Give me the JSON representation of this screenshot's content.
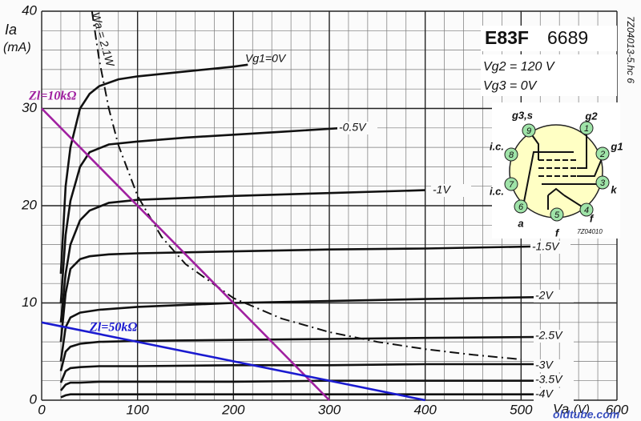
{
  "chart_data": {
    "type": "line",
    "title": "E83F",
    "subtitle": "6689",
    "conditions": [
      "Vg2 = 120 V",
      "Vg3 = 0V"
    ],
    "code": "7Z04013-5.hc 6",
    "watermark": "oldtube.com",
    "y_label": "Ia",
    "y_unit": "(mA)",
    "x_label": "Va",
    "x_unit": "(V)",
    "xlim": [
      0,
      600
    ],
    "ylim": [
      0,
      40
    ],
    "xticks": [
      0,
      100,
      200,
      300,
      400,
      500,
      600
    ],
    "yticks": [
      0,
      10,
      20,
      30,
      40
    ],
    "grid": true,
    "series": [
      {
        "name": "Vg1=0V",
        "color": "#111111",
        "x": [
          20,
          25,
          30,
          40,
          50,
          60,
          80,
          100,
          150,
          200,
          215
        ],
        "values": [
          13,
          22,
          26,
          30,
          31.5,
          32.3,
          33,
          33.3,
          33.8,
          34.3,
          34.5
        ]
      },
      {
        "name": "-0.5V",
        "color": "#111111",
        "x": [
          20,
          25,
          30,
          40,
          50,
          70,
          100,
          150,
          200,
          250,
          315
        ],
        "values": [
          10,
          17,
          20.5,
          24,
          25.5,
          26.3,
          26.6,
          27,
          27.3,
          27.6,
          28
        ]
      },
      {
        "name": "-1V",
        "color": "#111111",
        "x": [
          20,
          25,
          30,
          40,
          50,
          70,
          100,
          150,
          200,
          300,
          400
        ],
        "values": [
          8,
          13,
          16,
          18.5,
          19.5,
          20.3,
          20.6,
          20.8,
          21,
          21.3,
          21.6
        ]
      },
      {
        "name": "-1.5V",
        "color": "#111111",
        "x": [
          20,
          25,
          30,
          40,
          50,
          70,
          100,
          200,
          300,
          400,
          510
        ],
        "values": [
          6,
          11,
          13.5,
          14.5,
          14.8,
          15,
          15.1,
          15.3,
          15.5,
          15.6,
          15.8
        ]
      },
      {
        "name": "-2V",
        "color": "#111111",
        "x": [
          20,
          25,
          30,
          40,
          60,
          100,
          200,
          300,
          400,
          520
        ],
        "values": [
          4,
          7.5,
          8.5,
          9,
          9.3,
          9.6,
          10,
          10.2,
          10.4,
          10.6
        ]
      },
      {
        "name": "-2.5V",
        "color": "#111111",
        "x": [
          20,
          25,
          30,
          40,
          60,
          100,
          200,
          300,
          400,
          520
        ],
        "values": [
          3,
          5,
          5.5,
          5.8,
          6,
          6.1,
          6.2,
          6.3,
          6.4,
          6.5
        ]
      },
      {
        "name": "-3V",
        "color": "#111111",
        "x": [
          20,
          25,
          30,
          40,
          60,
          100,
          200,
          300,
          400,
          520
        ],
        "values": [
          1.8,
          3,
          3.3,
          3.4,
          3.5,
          3.5,
          3.6,
          3.6,
          3.7,
          3.7
        ]
      },
      {
        "name": "-3.5V",
        "color": "#111111",
        "x": [
          20,
          25,
          30,
          40,
          60,
          100,
          200,
          300,
          400,
          520
        ],
        "values": [
          1,
          1.6,
          1.8,
          1.8,
          1.9,
          1.9,
          1.9,
          2,
          2,
          2
        ]
      },
      {
        "name": "-4V",
        "color": "#111111",
        "x": [
          20,
          25,
          30,
          40,
          60,
          100,
          200,
          300,
          400,
          520
        ],
        "values": [
          0.3,
          0.5,
          0.6,
          0.6,
          0.6,
          0.6,
          0.6,
          0.6,
          0.6,
          0.6
        ]
      },
      {
        "name": "Wa = 2.1W",
        "color": "#111111",
        "dashed": true,
        "x": [
          52.5,
          60,
          70,
          80,
          100,
          125,
          150,
          200,
          250,
          300,
          350,
          400,
          450,
          500
        ],
        "values": [
          40,
          35,
          30,
          26.25,
          21,
          16.8,
          14,
          10.5,
          8.4,
          7,
          6,
          5.25,
          4.67,
          4.2
        ]
      },
      {
        "name": "Zl=10kΩ",
        "color": "#a020a0",
        "x": [
          0,
          300
        ],
        "values": [
          30,
          0
        ]
      },
      {
        "name": "Zl=50kΩ",
        "color": "#1a1ad0",
        "x": [
          0,
          400
        ],
        "values": [
          8,
          0
        ]
      }
    ],
    "pin_diagram": {
      "pins": [
        "1",
        "2",
        "3",
        "4",
        "5",
        "6",
        "7",
        "8",
        "9"
      ],
      "electrodes": [
        "g2",
        "g1",
        "k",
        "f",
        "f",
        "a",
        "i.c.",
        "i.c.",
        "g3,s"
      ],
      "code": "7Z04010"
    }
  }
}
